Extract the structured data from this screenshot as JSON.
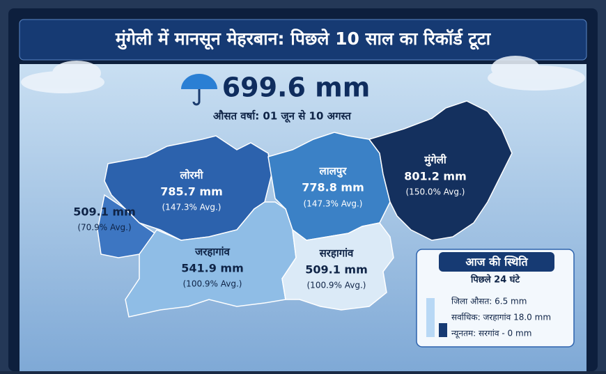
{
  "header": {
    "title": "मुंगेली में मानसून मेहरबान: पिछले 10 साल का रिकॉर्ड टूटा"
  },
  "summary": {
    "value": "699.6 mm",
    "caption": "औसत वर्षा: 01 जून से 10 अगस्त"
  },
  "regions": [
    {
      "name": "लोरमी",
      "rainfall": "785.7 mm",
      "share": "(147.3% Avg.)"
    },
    {
      "rainfall": "509.1 mm",
      "share": "(70.9% Avg.)"
    },
    {
      "name": "लालपुर",
      "rainfall": "778.8 mm",
      "share": "(147.3% Avg.)"
    },
    {
      "name": "मुंगेली",
      "rainfall": "801.2 mm",
      "share": "(150.0% Avg.)"
    },
    {
      "name": "जरहागांव",
      "rainfall": "541.9 mm",
      "share": "(100.9% Avg.)"
    },
    {
      "name": "सरहागांव",
      "rainfall": "509.1 mm",
      "share": "(100.9% Avg.)"
    }
  ],
  "today": {
    "title": "आज की स्थिति",
    "subtitle": "पिछले 24 घंटे",
    "items": [
      "जिला औसत: 6.5 mm",
      "सर्वाधिक: जरहागांव 18.0 mm",
      "न्यूनतम: सरगांव - 0 mm"
    ]
  }
}
